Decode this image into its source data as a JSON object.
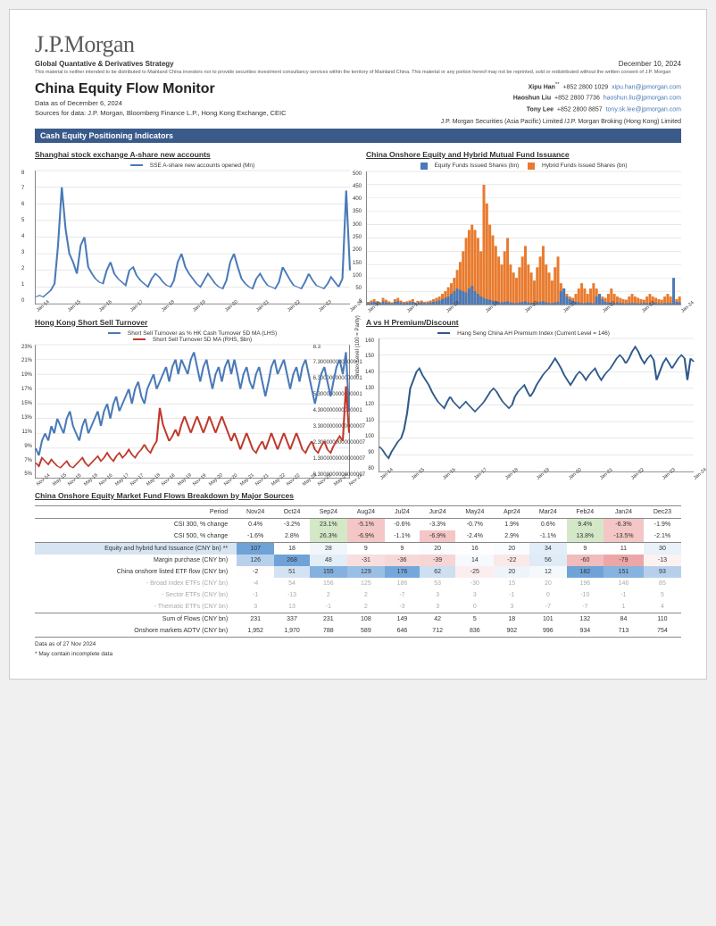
{
  "header": {
    "logo": "J.P.Morgan",
    "strategy": "Global Quantative & Derivatives Strategy",
    "pub_date": "December 10, 2024",
    "disclaimer": "This material is neither intended to be distributed to Mainland China investors nor to provide securities investment consultancy services within the territory of Mainland China. This material or any portion hereof may not be reprinted, sold or redistributed without the written consent of J.P. Morgan",
    "title": "China Equity Flow Monitor",
    "data_asof": "Data as of December 6, 2024",
    "sources": "Sources for data: J.P. Morgan, Bloomberg Finance L.P., Hong Kong Exchange, CEIC",
    "entity": "J.P. Morgan Securities (Asia Pacific) Limited /J.P. Morgan Broking (Hong Kong) Limited"
  },
  "contacts": [
    {
      "name": "Xipu Han",
      "star": "**",
      "phone": "+852 2800 1029",
      "email": "xipu.han@jpmorgan.com"
    },
    {
      "name": "Haoshun Liu",
      "star": "",
      "phone": "+852 2800 7736",
      "email": "haoshun.liu@jpmorgan.com"
    },
    {
      "name": "Tony Lee",
      "star": "",
      "phone": "+852 2800 8857",
      "email": "tony.sk.lee@jpmorgan.com"
    }
  ],
  "section_bar": "Cash Equity Positioning Indicators",
  "chart1": {
    "title": "Shanghai stock exchange A-share new accounts",
    "legend": "SSE A-share new accounts opened (Mn)",
    "color": "#4a7ab8",
    "ylim": [
      0,
      8
    ],
    "ytick_step": 1,
    "x_labels": [
      "Jan-14",
      "Jan-15",
      "Jan-16",
      "Jan-17",
      "Jan-18",
      "Jan-19",
      "Jan-20",
      "Jan-21",
      "Jan-22",
      "Jan-23",
      "Jan-24"
    ],
    "series": [
      0.4,
      0.5,
      0.4,
      0.6,
      0.8,
      1.2,
      3.5,
      7.0,
      4.5,
      3.0,
      2.5,
      1.8,
      3.5,
      4.0,
      2.2,
      1.8,
      1.5,
      1.3,
      1.2,
      2.0,
      2.5,
      1.8,
      1.5,
      1.3,
      1.1,
      2.0,
      2.2,
      1.7,
      1.4,
      1.2,
      1.0,
      1.5,
      1.8,
      1.6,
      1.3,
      1.1,
      1.0,
      1.4,
      2.5,
      3.0,
      2.2,
      1.8,
      1.5,
      1.2,
      1.0,
      1.4,
      1.8,
      1.5,
      1.2,
      1.0,
      0.9,
      1.4,
      2.5,
      3.0,
      2.2,
      1.5,
      1.2,
      1.0,
      0.9,
      1.5,
      1.8,
      1.4,
      1.1,
      1.0,
      0.9,
      1.3,
      2.2,
      1.8,
      1.4,
      1.1,
      1.0,
      0.9,
      1.3,
      1.8,
      1.4,
      1.1,
      1.0,
      0.9,
      1.2,
      1.6,
      1.3,
      1.0,
      1.5,
      6.8,
      2.0
    ]
  },
  "chart2": {
    "title": "China Onshore Equity and Hybrid Mutual Fund Issuance",
    "legend1": "Equity Funds Issued Shares (bn)",
    "legend2": "Hybrid Funds Issued Shares (bn)",
    "color1": "#4a7ab8",
    "color2": "#e87b2e",
    "ylim": [
      0,
      500
    ],
    "ytick_step": 50,
    "x_labels": [
      "Jan-16",
      "Jan-17",
      "Jan-18",
      "Jan-19",
      "Jan-20",
      "Jan-21",
      "Jan-22",
      "Jan-23",
      "Jan-24"
    ],
    "equity": [
      5,
      8,
      10,
      6,
      5,
      12,
      8,
      6,
      5,
      10,
      12,
      8,
      5,
      6,
      8,
      10,
      5,
      6,
      8,
      5,
      6,
      8,
      10,
      12,
      15,
      20,
      25,
      30,
      40,
      50,
      60,
      55,
      50,
      45,
      60,
      70,
      50,
      40,
      30,
      25,
      20,
      18,
      15,
      12,
      10,
      8,
      10,
      12,
      8,
      6,
      5,
      8,
      10,
      12,
      8,
      6,
      5,
      8,
      10,
      12,
      8,
      6,
      5,
      8,
      10,
      50,
      60,
      30,
      20,
      15,
      10,
      8,
      6,
      5,
      8,
      6,
      5,
      30,
      40,
      20,
      10,
      8,
      6,
      5,
      8,
      6,
      5,
      4,
      5,
      6,
      5,
      4,
      5,
      6,
      5,
      4,
      5,
      6,
      5,
      4,
      5,
      6,
      5,
      100,
      10,
      8
    ],
    "hybrid": [
      10,
      15,
      20,
      12,
      8,
      25,
      18,
      12,
      8,
      20,
      25,
      15,
      10,
      12,
      15,
      20,
      8,
      12,
      15,
      10,
      12,
      15,
      20,
      25,
      30,
      40,
      50,
      65,
      80,
      100,
      130,
      160,
      200,
      250,
      280,
      300,
      280,
      250,
      200,
      450,
      380,
      300,
      260,
      220,
      180,
      150,
      200,
      250,
      150,
      120,
      100,
      140,
      180,
      220,
      150,
      120,
      90,
      140,
      180,
      220,
      150,
      120,
      90,
      140,
      180,
      80,
      60,
      40,
      30,
      25,
      40,
      60,
      80,
      60,
      40,
      60,
      80,
      60,
      40,
      30,
      25,
      40,
      60,
      40,
      30,
      25,
      20,
      18,
      30,
      40,
      30,
      25,
      20,
      18,
      30,
      40,
      30,
      25,
      20,
      18,
      30,
      40,
      30,
      25,
      20,
      30
    ]
  },
  "chart3": {
    "title": "Hong Kong Short Sell Turnover",
    "legend1": "Short Sell Turnover as % HK Cash Turnover 5D MA (LHS)",
    "legend2": "Short Sell Turnover 5D MA (RHS, $bn)",
    "color1": "#4a7ab8",
    "color2": "#c0392b",
    "ylim_l": [
      5,
      23
    ],
    "ytick_l_step": 2,
    "ylim_r": [
      0.3,
      8.3
    ],
    "ytick_r_step": 1.0,
    "x_labels": [
      "Nov-14",
      "May-15",
      "Nov-15",
      "May-16",
      "Nov-16",
      "May-17",
      "Nov-17",
      "May-18",
      "Nov-18",
      "May-19",
      "Nov-19",
      "May-20",
      "Nov-20",
      "May-21",
      "Nov-21",
      "May-22",
      "Nov-22",
      "May-23",
      "Nov-23",
      "May-24",
      "Nov-24"
    ],
    "lhs": [
      9,
      8,
      10,
      11,
      10,
      12,
      11,
      13,
      12,
      11,
      13,
      14,
      12,
      11,
      10,
      12,
      13,
      11,
      12,
      13,
      14,
      12,
      14,
      15,
      13,
      15,
      16,
      14,
      15,
      16,
      17,
      15,
      17,
      18,
      16,
      15,
      17,
      18,
      19,
      17,
      18,
      19,
      20,
      18,
      20,
      21,
      19,
      21,
      20,
      19,
      21,
      22,
      20,
      18,
      20,
      21,
      19,
      17,
      19,
      20,
      18,
      20,
      21,
      19,
      21,
      19,
      17,
      19,
      20,
      18,
      17,
      19,
      20,
      18,
      16,
      18,
      20,
      21,
      19,
      20,
      21,
      19,
      17,
      19,
      20,
      18,
      20,
      21,
      19,
      17,
      15,
      17,
      19,
      20,
      18,
      16,
      18,
      20,
      21,
      19,
      22,
      14
    ],
    "rhs": [
      1.2,
      1.0,
      1.5,
      1.3,
      1.1,
      1.4,
      1.2,
      1.0,
      0.9,
      1.1,
      1.3,
      1.0,
      0.9,
      1.1,
      1.3,
      1.5,
      1.2,
      1.0,
      1.2,
      1.4,
      1.6,
      1.3,
      1.5,
      1.8,
      1.5,
      1.3,
      1.6,
      1.8,
      1.5,
      1.7,
      2.0,
      1.7,
      1.5,
      1.8,
      2.0,
      2.3,
      2.0,
      1.8,
      2.2,
      2.5,
      4.5,
      3.5,
      3.0,
      2.5,
      2.8,
      3.2,
      2.8,
      3.5,
      4.0,
      3.5,
      3.0,
      3.5,
      4.0,
      3.5,
      3.0,
      3.5,
      4.0,
      3.5,
      3.0,
      3.5,
      4.0,
      3.5,
      3.0,
      2.5,
      3.0,
      2.5,
      2.0,
      2.5,
      3.0,
      2.5,
      2.0,
      1.8,
      2.2,
      2.5,
      2.0,
      2.5,
      3.0,
      2.5,
      2.0,
      2.5,
      3.0,
      2.5,
      2.0,
      2.5,
      3.0,
      2.5,
      2.0,
      1.8,
      2.2,
      2.5,
      2.0,
      1.8,
      2.2,
      2.5,
      2.0,
      1.8,
      2.2,
      2.5,
      2.8,
      2.5,
      5.8,
      3.0
    ]
  },
  "chart4": {
    "title": "A vs H Premium/Discount",
    "legend": "Hang Seng China AH Premium Index (Current Level = 146)",
    "color": "#2e5a8a",
    "y_axis_label": "Index Level (100 = Parity)",
    "ylim": [
      80,
      160
    ],
    "ytick_step": 10,
    "x_labels": [
      "Jan-14",
      "Jan-15",
      "Jan-16",
      "Jan-17",
      "Jan-18",
      "Jan-19",
      "Jan-20",
      "Jan-21",
      "Jan-22",
      "Jan-23",
      "Jan-24"
    ],
    "series": [
      95,
      93,
      90,
      88,
      92,
      95,
      98,
      100,
      105,
      115,
      130,
      135,
      140,
      142,
      138,
      135,
      132,
      128,
      125,
      122,
      120,
      118,
      122,
      125,
      122,
      120,
      118,
      120,
      122,
      120,
      118,
      116,
      118,
      120,
      122,
      125,
      128,
      130,
      128,
      125,
      122,
      120,
      118,
      120,
      125,
      128,
      130,
      132,
      128,
      125,
      128,
      132,
      135,
      138,
      140,
      142,
      145,
      148,
      145,
      142,
      138,
      135,
      132,
      135,
      138,
      140,
      138,
      135,
      138,
      140,
      142,
      138,
      135,
      138,
      140,
      142,
      145,
      148,
      150,
      148,
      145,
      148,
      152,
      155,
      152,
      148,
      145,
      148,
      150,
      147,
      135,
      140,
      145,
      148,
      145,
      142,
      145,
      148,
      150,
      148,
      135,
      148,
      146
    ]
  },
  "table": {
    "title": "China Onshore Equity Market Fund Flows Breakdown by Major Sources",
    "period_label": "Period",
    "columns": [
      "Nov24",
      "Oct24",
      "Sep24",
      "Aug24",
      "Jul24",
      "Jun24",
      "May24",
      "Apr24",
      "Mar24",
      "Feb24",
      "Jan24",
      "Dec23"
    ],
    "rows": [
      {
        "label": "CSI 300, % change",
        "cells": [
          "0.4%",
          "-3.2%",
          "23.1%",
          "-5.1%",
          "-0.6%",
          "-3.3%",
          "-0.7%",
          "1.9%",
          "0.6%",
          "9.4%",
          "-6.3%",
          "-1.9%"
        ],
        "hl": [
          "",
          "",
          "g",
          "r",
          "",
          "",
          "",
          "",
          "",
          "g",
          "r",
          ""
        ]
      },
      {
        "label": "CSI 500, % change",
        "cells": [
          "-1.6%",
          "2.8%",
          "26.3%",
          "-6.9%",
          "-1.1%",
          "-6.9%",
          "-2.4%",
          "2.9%",
          "-1.1%",
          "13.8%",
          "-13.5%",
          "-2.1%"
        ],
        "hl": [
          "",
          "",
          "g",
          "r",
          "",
          "r",
          "",
          "",
          "",
          "g",
          "r",
          ""
        ],
        "sep_after": true
      },
      {
        "label": "Equity and hybrid fund Issuance (CNY bn) **",
        "cellbg": "#d7e4f2",
        "cells": [
          "107",
          "18",
          "28",
          "9",
          "9",
          "20",
          "16",
          "20",
          "34",
          "9",
          "11",
          "30"
        ],
        "hm": [
          1.0,
          0.0,
          0.1,
          0.0,
          0.0,
          0.03,
          0.01,
          0.03,
          0.2,
          0.0,
          0.0,
          0.15
        ]
      },
      {
        "label": "Margin purchase (CNY bn)",
        "cells": [
          "126",
          "268",
          "48",
          "-31",
          "-36",
          "-39",
          "14",
          "-22",
          "56",
          "-60",
          "-79",
          "-13"
        ],
        "hm": [
          0.5,
          1.0,
          0.2,
          -0.3,
          -0.35,
          -0.38,
          0.06,
          -0.2,
          0.22,
          -0.6,
          -0.8,
          -0.12
        ]
      },
      {
        "label": "China onshore listed ETF flow (CNY bn)",
        "cells": [
          "-2",
          "51",
          "155",
          "129",
          "176",
          "62",
          "-25",
          "20",
          "12",
          "182",
          "151",
          "93"
        ],
        "hm": [
          -0.02,
          0.3,
          0.85,
          0.7,
          0.96,
          0.35,
          -0.15,
          0.12,
          0.07,
          1.0,
          0.83,
          0.51
        ]
      },
      {
        "label": "- Broad index ETFs (CNY bn)",
        "muted": true,
        "cells": [
          "-4",
          "54",
          "156",
          "125",
          "186",
          "53",
          "-30",
          "15",
          "20",
          "196",
          "146",
          "85"
        ]
      },
      {
        "label": "- Sector ETFs (CNY bn)",
        "muted": true,
        "cells": [
          "-1",
          "-13",
          "2",
          "2",
          "-7",
          "3",
          "3",
          "-1",
          "0",
          "-10",
          "-1",
          "5"
        ]
      },
      {
        "label": "- Thematic ETFs (CNY bn)",
        "muted": true,
        "cells": [
          "3",
          "13",
          "-1",
          "2",
          "-3",
          "3",
          "0",
          "3",
          "-7",
          "-7",
          "1",
          "4"
        ],
        "sep_after": true
      },
      {
        "label": "Sum of Flows (CNY bn)",
        "cells": [
          "231",
          "337",
          "231",
          "108",
          "149",
          "42",
          "5",
          "18",
          "101",
          "132",
          "84",
          "110"
        ]
      },
      {
        "label": "Onshore markets ADTV (CNY bn)",
        "cells": [
          "1,952",
          "1,970",
          "788",
          "589",
          "646",
          "712",
          "836",
          "902",
          "996",
          "934",
          "713",
          "754"
        ],
        "sep_after_bold": true
      }
    ],
    "footnote1": "Data as of 27 Nov 2024",
    "footnote2": "* May contain incomplete data"
  },
  "colors": {
    "hl_green": "#d4e8c8",
    "hl_red": "#f4c6c6",
    "hm_blue_max": "#6fa3d8",
    "hm_red_max": "#e89090",
    "grid": "#d0d0d0"
  }
}
